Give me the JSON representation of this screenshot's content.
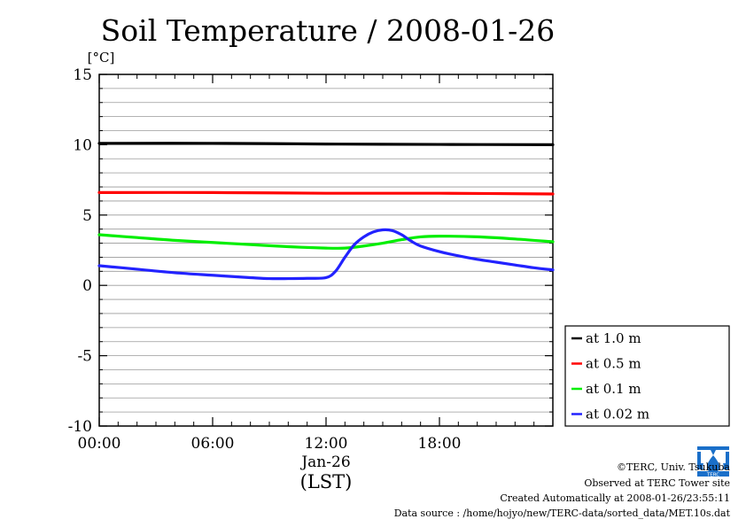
{
  "chart_data": {
    "type": "line",
    "title": "Soil Temperature / 2008-01-26",
    "ylabel": "[°C]",
    "ylim": [
      -10,
      15
    ],
    "yticks": [
      15,
      10,
      5,
      0,
      -5,
      -10
    ],
    "yticks_minor_step": 1,
    "xlim": [
      0,
      24
    ],
    "xticks": [
      {
        "hour": 0,
        "label": "00:00"
      },
      {
        "hour": 6,
        "label": "06:00"
      },
      {
        "hour": 12,
        "label": "12:00"
      },
      {
        "hour": 18,
        "label": "18:00"
      }
    ],
    "xlabel_date": "Jan-26",
    "xlabel_tz": "(LST)",
    "grid": "horizontal",
    "legend_placement": "right-bottom",
    "series": [
      {
        "name": "at 1.0 m",
        "color": "#000000",
        "x": [
          0,
          6,
          12,
          18,
          24
        ],
        "y": [
          10.1,
          10.1,
          10.05,
          10.02,
          10.0
        ]
      },
      {
        "name": "at 0.5 m",
        "color": "#ff0000",
        "x": [
          0,
          6,
          12,
          18,
          24
        ],
        "y": [
          6.6,
          6.6,
          6.55,
          6.55,
          6.5
        ]
      },
      {
        "name": "at 0.1 m",
        "color": "#00ee00",
        "x": [
          0,
          2,
          4,
          6,
          8,
          10,
          12,
          13,
          14,
          15,
          16,
          17,
          18,
          20,
          22,
          24
        ],
        "y": [
          3.6,
          3.4,
          3.2,
          3.05,
          2.9,
          2.75,
          2.65,
          2.65,
          2.8,
          3.0,
          3.25,
          3.45,
          3.5,
          3.45,
          3.3,
          3.1
        ]
      },
      {
        "name": "at 0.02 m",
        "color": "#2222ff",
        "x": [
          0,
          2,
          4,
          6,
          8,
          9,
          10,
          11,
          12,
          12.5,
          13,
          13.5,
          14,
          14.5,
          15,
          15.5,
          16,
          16.5,
          17,
          18,
          19,
          20,
          21,
          22,
          23,
          24
        ],
        "y": [
          1.4,
          1.15,
          0.9,
          0.72,
          0.55,
          0.48,
          0.48,
          0.5,
          0.55,
          1.0,
          2.0,
          2.9,
          3.45,
          3.8,
          3.95,
          3.9,
          3.6,
          3.15,
          2.8,
          2.4,
          2.1,
          1.85,
          1.65,
          1.45,
          1.25,
          1.1
        ]
      }
    ]
  },
  "credits": {
    "copyright": "©TERC, Univ. Tsukuba",
    "observed": "Observed at TERC Tower site",
    "created": "Created Automatically at 2008-01-26/23:55:11",
    "source": "Data source : /home/hojyo/new/TERC-data/sorted_data/MET.10s.dat",
    "logo_text": "TERC"
  }
}
